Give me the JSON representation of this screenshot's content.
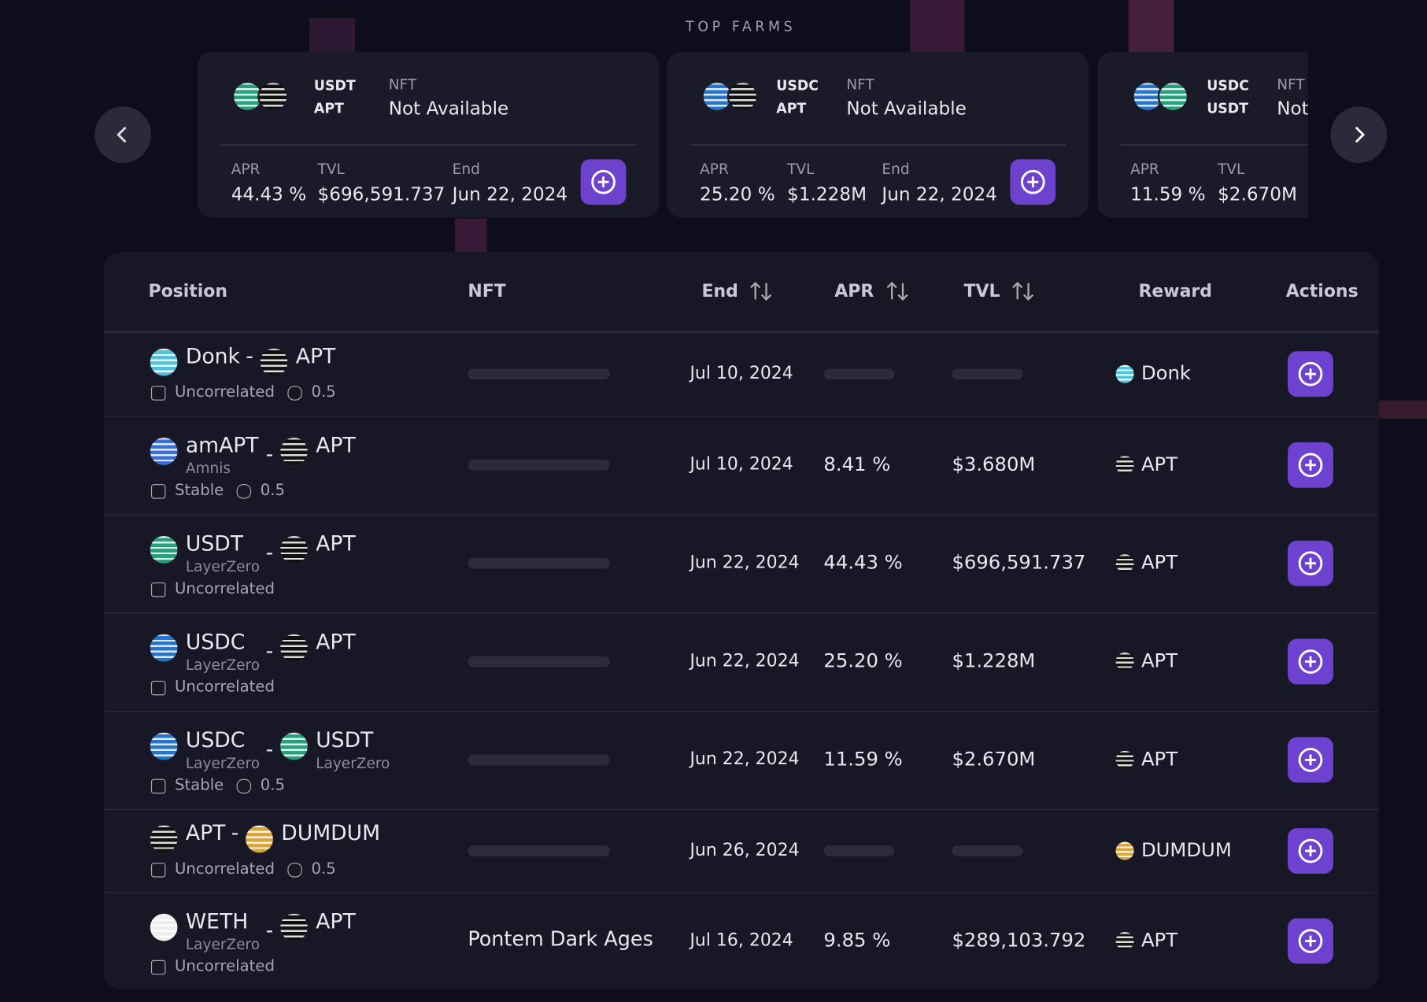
{
  "top_farms": {
    "title": "TOP FARMS",
    "cards": [
      {
        "tokens": [
          {
            "name": "USDT",
            "color": "#26a17b"
          },
          {
            "name": "APT",
            "color": "#111"
          }
        ],
        "nft_label": "NFT",
        "nft": "Not Available",
        "apr_label": "APR",
        "apr": "44.43 %",
        "tvl_label": "TVL",
        "tvl": "$696,591.737",
        "end_label": "End",
        "end": "Jun 22, 2024"
      },
      {
        "tokens": [
          {
            "name": "USDC",
            "color": "#2775ca"
          },
          {
            "name": "APT",
            "color": "#111"
          }
        ],
        "nft_label": "NFT",
        "nft": "Not Available",
        "apr_label": "APR",
        "apr": "25.20 %",
        "tvl_label": "TVL",
        "tvl": "$1.228M",
        "end_label": "End",
        "end": "Jun 22, 2024"
      },
      {
        "tokens": [
          {
            "name": "USDC",
            "color": "#2775ca"
          },
          {
            "name": "USDT",
            "color": "#26a17b"
          }
        ],
        "nft_label": "NFT",
        "nft": "Not",
        "apr_label": "APR",
        "apr": "11.59 %",
        "tvl_label": "TVL",
        "tvl": "$2.670M"
      }
    ]
  },
  "table": {
    "headers": [
      "Position",
      "NFT",
      "End",
      "APR",
      "TVL",
      "Reward",
      "Actions"
    ],
    "rows": [
      {
        "tokens": [
          {
            "name": "Donk",
            "color": "#4fc3d9"
          },
          {
            "name": "APT",
            "color": "#111"
          }
        ],
        "separator": "-",
        "tags": [
          "Uncorrelated",
          "0.5"
        ],
        "nft": null,
        "end": "Jul 10, 2024",
        "apr": null,
        "tvl": null,
        "reward": {
          "name": "Donk",
          "color": "#4fc3d9"
        }
      },
      {
        "tokens": [
          {
            "name": "amAPT",
            "sub": "Amnis",
            "color": "#3a6fd8"
          },
          {
            "name": "APT",
            "color": "#111"
          }
        ],
        "separator": "-",
        "tags": [
          "Stable",
          "0.5"
        ],
        "nft": null,
        "end": "Jul 10, 2024",
        "apr": "8.41 %",
        "tvl": "$3.680M",
        "reward": {
          "name": "APT",
          "color": "#111"
        }
      },
      {
        "tokens": [
          {
            "name": "USDT",
            "sub": "LayerZero",
            "color": "#26a17b"
          },
          {
            "name": "APT",
            "color": "#111"
          }
        ],
        "separator": "-",
        "tags": [
          "Uncorrelated"
        ],
        "nft": null,
        "end": "Jun 22, 2024",
        "apr": "44.43 %",
        "tvl": "$696,591.737",
        "reward": {
          "name": "APT",
          "color": "#111"
        }
      },
      {
        "tokens": [
          {
            "name": "USDC",
            "sub": "LayerZero",
            "color": "#2775ca"
          },
          {
            "name": "APT",
            "color": "#111"
          }
        ],
        "separator": "-",
        "tags": [
          "Uncorrelated"
        ],
        "nft": null,
        "end": "Jun 22, 2024",
        "apr": "25.20 %",
        "tvl": "$1.228M",
        "reward": {
          "name": "APT",
          "color": "#111"
        }
      },
      {
        "tokens": [
          {
            "name": "USDC",
            "sub": "LayerZero",
            "color": "#2775ca"
          },
          {
            "name": "USDT",
            "sub": "LayerZero",
            "color": "#26a17b"
          }
        ],
        "separator": "-",
        "tags": [
          "Stable",
          "0.5"
        ],
        "nft": null,
        "end": "Jun 22, 2024",
        "apr": "11.59 %",
        "tvl": "$2.670M",
        "reward": {
          "name": "APT",
          "color": "#111"
        }
      },
      {
        "tokens": [
          {
            "name": "APT",
            "color": "#111"
          },
          {
            "name": "DUMDUM",
            "color": "#d9a43a"
          }
        ],
        "separator": "-",
        "tags": [
          "Uncorrelated",
          "0.5"
        ],
        "nft": null,
        "end": "Jun 26, 2024",
        "apr": null,
        "tvl": null,
        "reward": {
          "name": "DUMDUM",
          "color": "#d9a43a"
        }
      },
      {
        "tokens": [
          {
            "name": "WETH",
            "sub": "LayerZero",
            "color": "#eee"
          },
          {
            "name": "APT",
            "color": "#111"
          }
        ],
        "separator": "-",
        "tags": [
          "Uncorrelated"
        ],
        "nft": "Pontem Dark Ages",
        "end": "Jul 16, 2024",
        "apr": "9.85 %",
        "tvl": "$289,103.792",
        "reward": {
          "name": "APT",
          "color": "#111"
        }
      }
    ]
  }
}
